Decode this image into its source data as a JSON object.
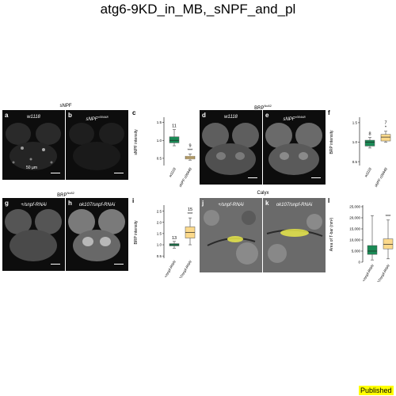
{
  "title": "atg6-9KD_in_MB,_sNPF_and_pl",
  "badge": "Published",
  "colors": {
    "green": "#1a8a55",
    "yellow": "#fbd98b",
    "dark": "#0d0d0d"
  },
  "top_left": {
    "group_title": "sNPF",
    "panels": [
      {
        "letter": "a",
        "genotype": "w1118",
        "scale_text": "50 µm"
      },
      {
        "letter": "b",
        "genotype": "sNPF",
        "genotype_sup": "c00448"
      }
    ]
  },
  "top_right": {
    "group_title": "BRP",
    "group_title_sup": "Nc82",
    "panels": [
      {
        "letter": "d",
        "genotype": "w1118"
      },
      {
        "letter": "e",
        "genotype": "sNPF",
        "genotype_sup": "c00448"
      }
    ]
  },
  "bottom_left": {
    "group_title": "BRP",
    "group_title_sup": "Nc82",
    "panels": [
      {
        "letter": "g",
        "genotype": "+/snpf-RNAi"
      },
      {
        "letter": "h",
        "genotype": "ok107/snpf-RNAi"
      }
    ]
  },
  "bottom_right": {
    "group_title": "Calyx",
    "panels": [
      {
        "letter": "j",
        "genotype": "+/snpf-RNAi"
      },
      {
        "letter": "k",
        "genotype": "ok107/snpf-RNAi"
      }
    ]
  },
  "chart_data": [
    {
      "panel": "c",
      "type": "box",
      "ylabel": "sNPF intensity",
      "categories": [
        "w1118",
        "sNPF c00448"
      ],
      "yticks": [
        "0.5",
        "1.0",
        "1.5"
      ],
      "ylim": [
        0.3,
        1.6
      ],
      "boxes": [
        {
          "min": 0.85,
          "q1": 0.93,
          "median": 1.0,
          "q3": 1.1,
          "max": 1.3,
          "color": "#1a8a55",
          "n": "11",
          "sig": ""
        },
        {
          "min": 0.45,
          "q1": 0.48,
          "median": 0.52,
          "q3": 0.56,
          "max": 0.62,
          "color": "#fbd98b",
          "n": "9",
          "sig": "***"
        }
      ]
    },
    {
      "panel": "f",
      "type": "box",
      "ylabel": "BRP intensity",
      "categories": [
        "w1118",
        "sNPF c00448"
      ],
      "yticks": [
        "0.5",
        "1.0",
        "1.5"
      ],
      "ylim": [
        0.4,
        1.6
      ],
      "boxes": [
        {
          "min": 0.85,
          "q1": 0.9,
          "median": 1.0,
          "q3": 1.05,
          "max": 1.12,
          "color": "#1a8a55",
          "n": "8",
          "sig": ""
        },
        {
          "min": 1.0,
          "q1": 1.03,
          "median": 1.13,
          "q3": 1.2,
          "max": 1.28,
          "color": "#fbd98b",
          "n": "7",
          "sig": "*"
        }
      ]
    },
    {
      "panel": "i",
      "type": "box",
      "ylabel": "BRP intensity",
      "categories": [
        "+/snpf-RNAi",
        "ok107/snpf-RNAi"
      ],
      "yticks": [
        "0.5",
        "1.0",
        "1.5",
        "2.0",
        "2.5"
      ],
      "ylim": [
        0.4,
        2.7
      ],
      "boxes": [
        {
          "min": 0.85,
          "q1": 0.95,
          "median": 1.0,
          "q3": 1.05,
          "max": 1.15,
          "color": "#1a8a55",
          "n": "13",
          "sig": ""
        },
        {
          "min": 1.0,
          "q1": 1.3,
          "median": 1.55,
          "q3": 1.8,
          "max": 2.2,
          "color": "#fbd98b",
          "n": "15",
          "sig": "***"
        }
      ]
    },
    {
      "panel": "l",
      "type": "box",
      "ylabel": "Area of T-bar (nm²)",
      "categories": [
        "+/snpf-RNAi",
        "ok107/snpf-RNAi"
      ],
      "yticks": [
        "0",
        "5,000",
        "10,000",
        "15,000",
        "20,000",
        "25,000"
      ],
      "ylim": [
        0,
        25000
      ],
      "boxes": [
        {
          "min": 1000,
          "q1": 3500,
          "median": 5000,
          "q3": 7500,
          "max": 21000,
          "color": "#1a8a55",
          "n": "",
          "sig": ""
        },
        {
          "min": 1500,
          "q1": 6000,
          "median": 8000,
          "q3": 10500,
          "max": 19000,
          "color": "#fbd98b",
          "n": "",
          "sig": "***"
        }
      ]
    }
  ]
}
